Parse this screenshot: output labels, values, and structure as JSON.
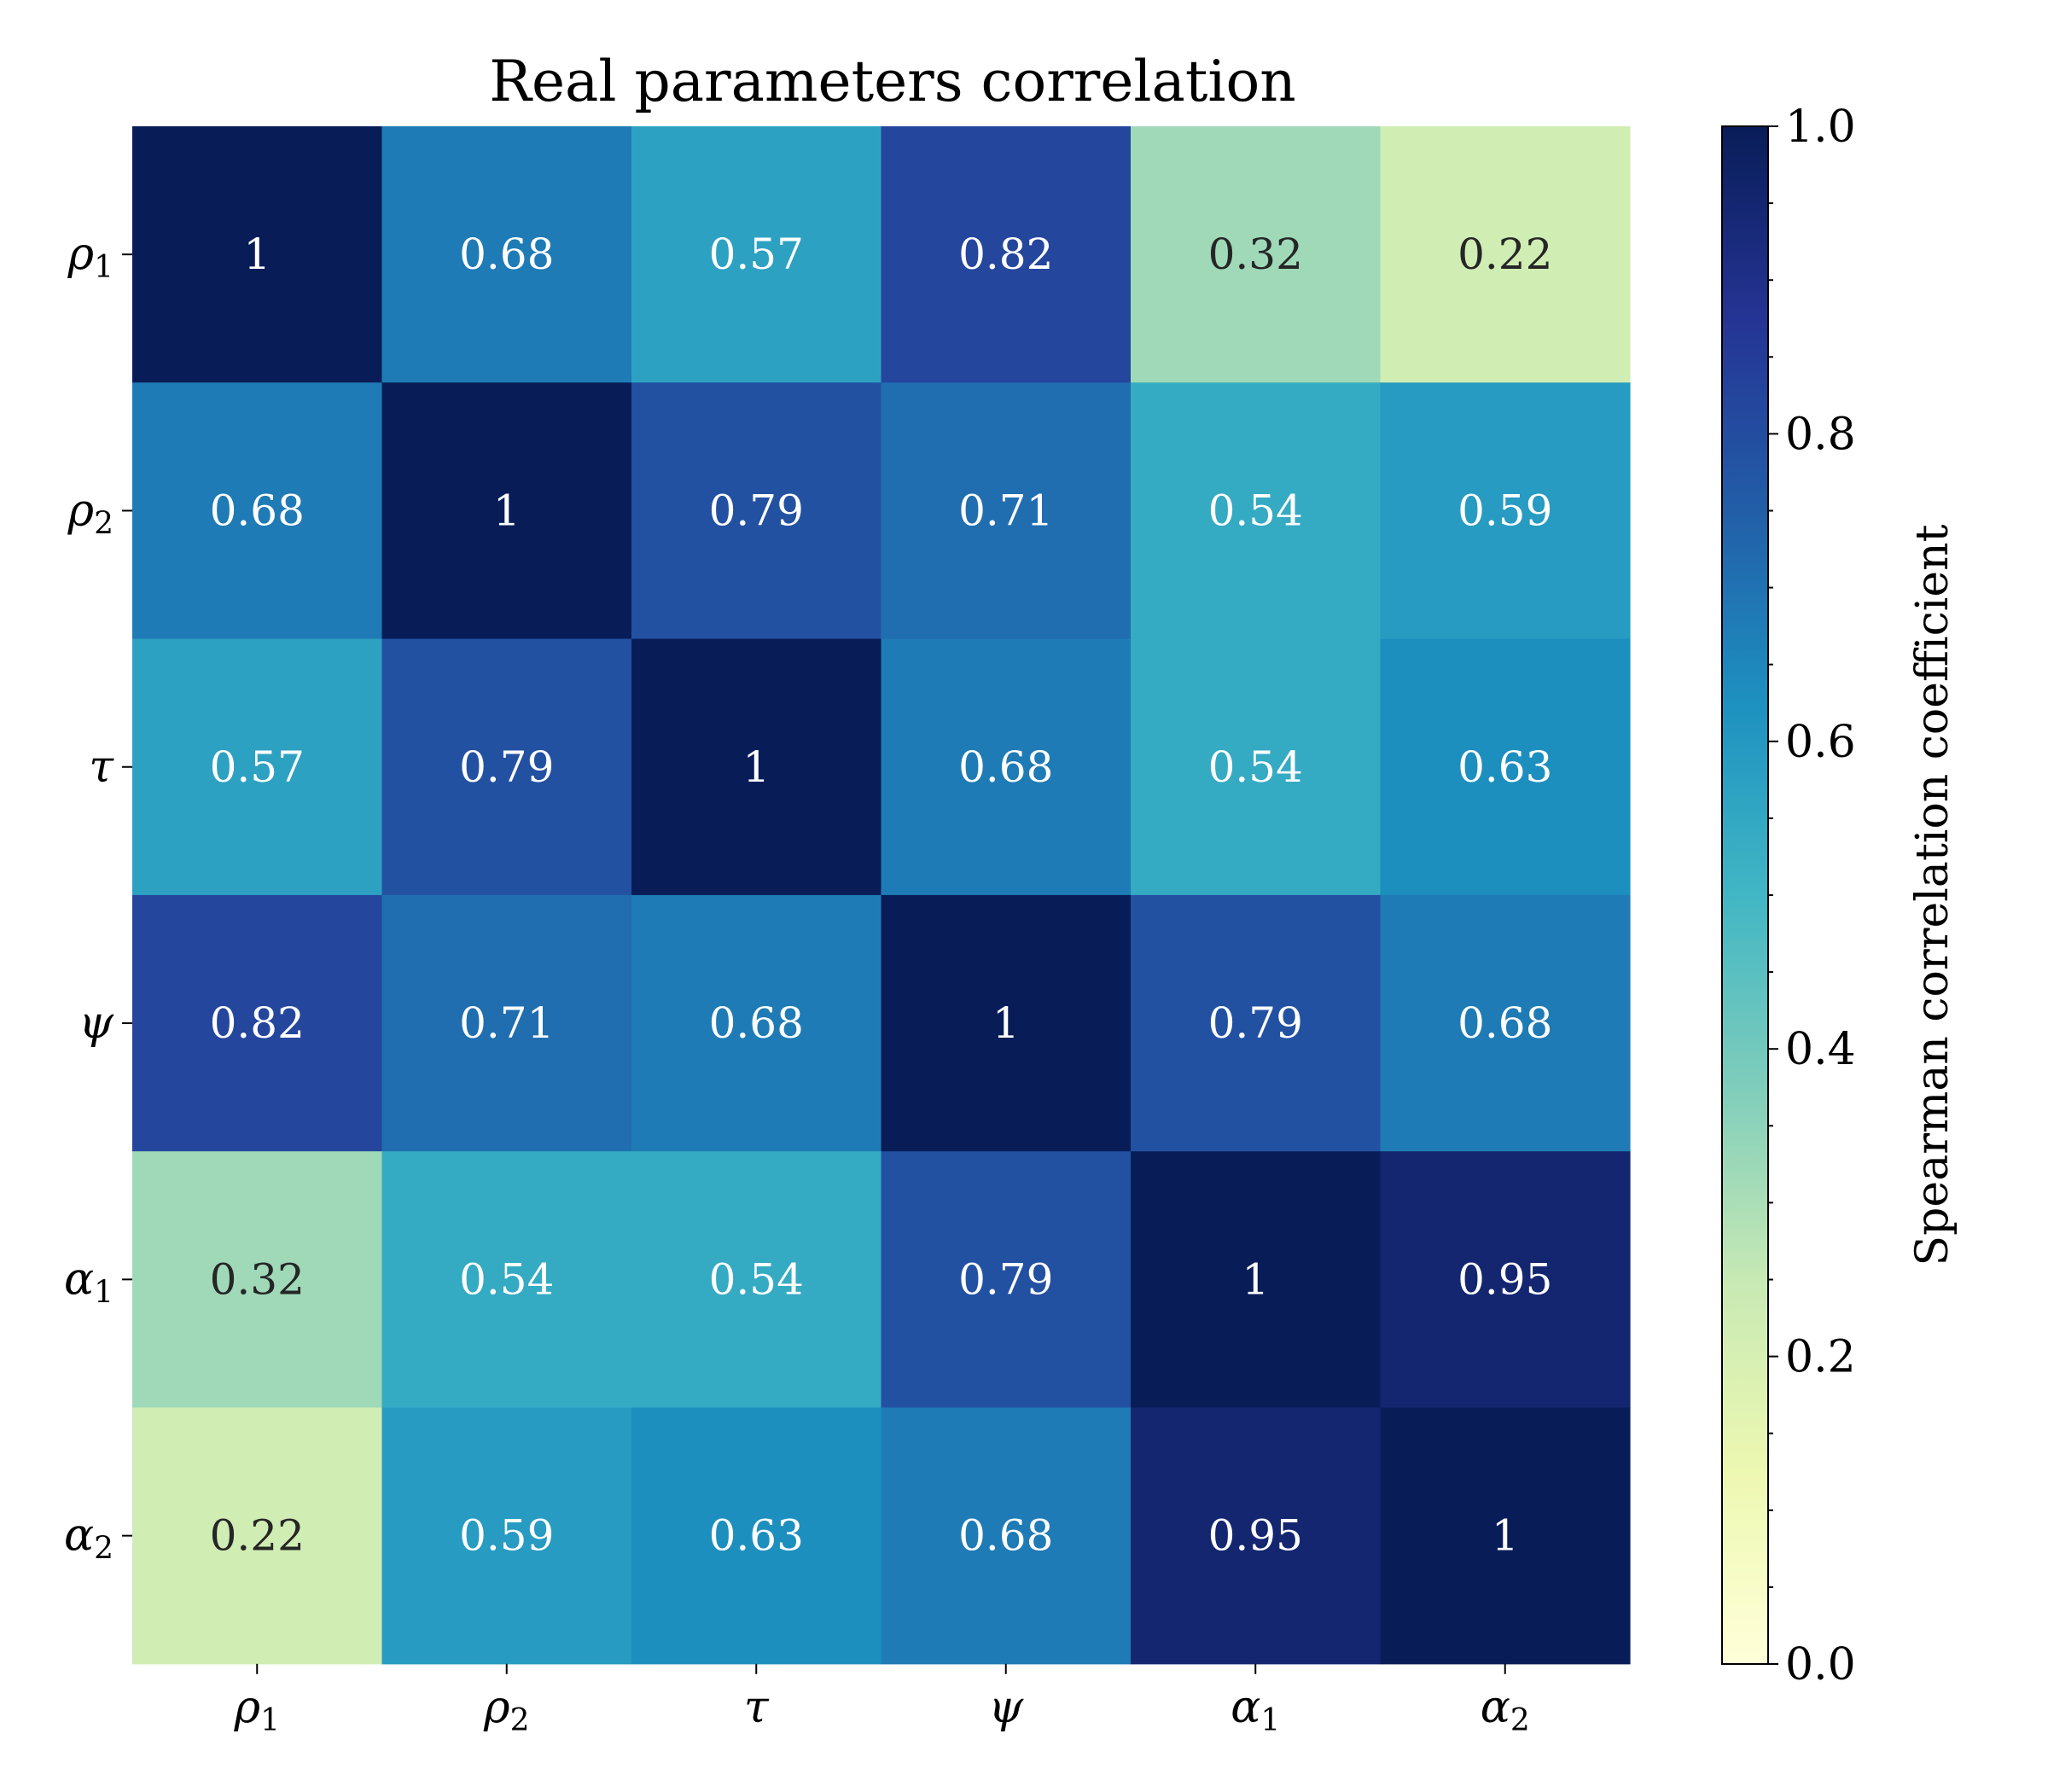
{
  "chart_data": {
    "type": "heatmap",
    "title": "Real parameters correlation",
    "row_labels": [
      {
        "base": "ρ",
        "sub": "1"
      },
      {
        "base": "ρ",
        "sub": "2"
      },
      {
        "base": "τ",
        "sub": ""
      },
      {
        "base": "ψ",
        "sub": ""
      },
      {
        "base": "α",
        "sub": "1"
      },
      {
        "base": "α",
        "sub": "2"
      }
    ],
    "col_labels": [
      {
        "base": "ρ",
        "sub": "1"
      },
      {
        "base": "ρ",
        "sub": "2"
      },
      {
        "base": "τ",
        "sub": ""
      },
      {
        "base": "ψ",
        "sub": ""
      },
      {
        "base": "α",
        "sub": "1"
      },
      {
        "base": "α",
        "sub": "2"
      }
    ],
    "values": [
      [
        1,
        0.68,
        0.57,
        0.82,
        0.32,
        0.22
      ],
      [
        0.68,
        1,
        0.79,
        0.71,
        0.54,
        0.59
      ],
      [
        0.57,
        0.79,
        1,
        0.68,
        0.54,
        0.63
      ],
      [
        0.82,
        0.71,
        0.68,
        1,
        0.79,
        0.68
      ],
      [
        0.32,
        0.54,
        0.54,
        0.79,
        1,
        0.95
      ],
      [
        0.22,
        0.59,
        0.63,
        0.68,
        0.95,
        1
      ]
    ],
    "colorbar": {
      "label": "Spearman correlation coefficient",
      "range": [
        0,
        1
      ],
      "colormap": "YlGnBu",
      "ticks": [
        "0.0",
        "0.2",
        "0.4",
        "0.6",
        "0.8",
        "1.0"
      ],
      "tick_values": [
        0,
        0.2,
        0.4,
        0.6,
        0.8,
        1.0
      ]
    },
    "colors": {
      "light_text": "#ffffff",
      "dark_text": "#262626",
      "stops": [
        "#ffffd9",
        "#edf8b1",
        "#c7e9b4",
        "#7fcdbb",
        "#41b6c4",
        "#1d91c0",
        "#225ea8",
        "#253494",
        "#081d58"
      ]
    }
  }
}
